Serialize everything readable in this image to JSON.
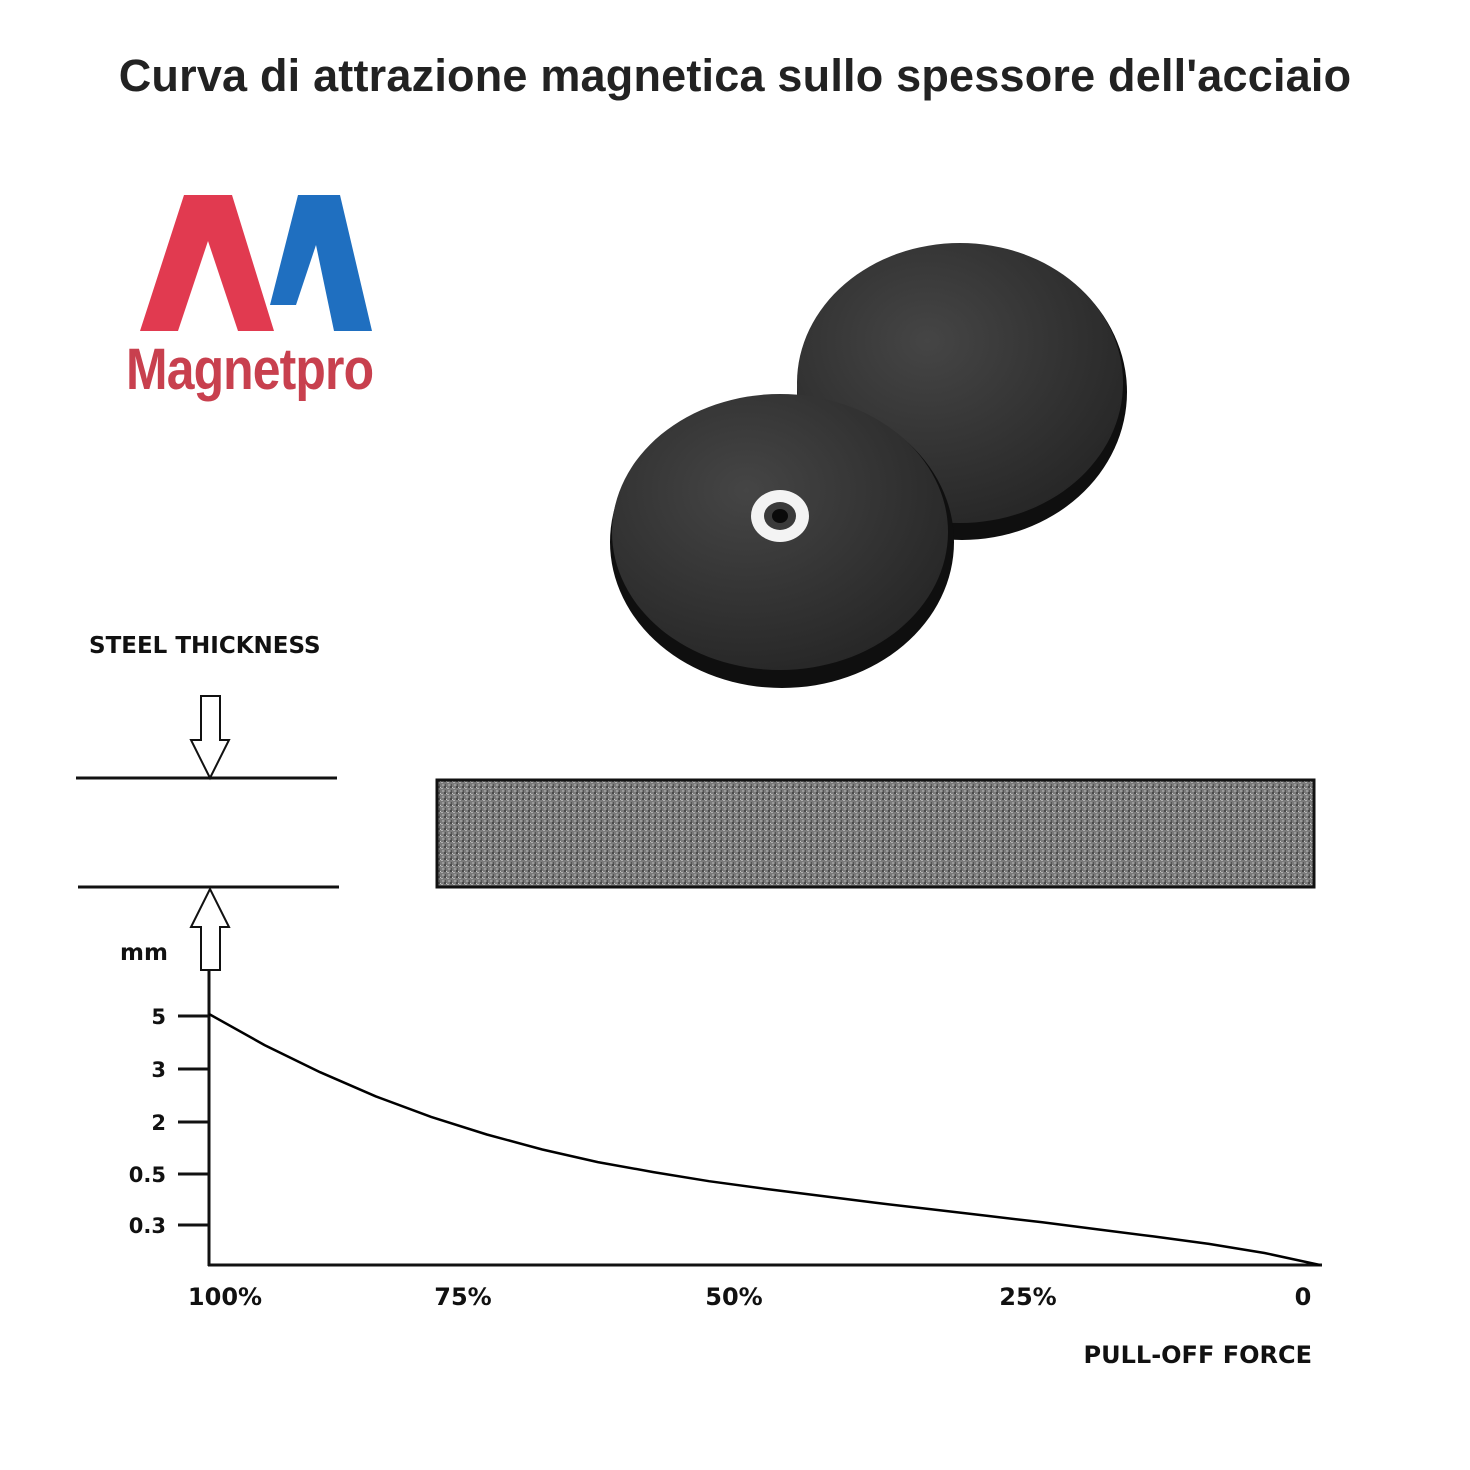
{
  "title": "Curva di attrazione magnetica sullo spessore dell'acciaio",
  "logo": {
    "text": "Magnetpro",
    "text_color": "#c8404e",
    "left_color": "#e13a50",
    "right_color": "#1f6fc0"
  },
  "chart_data": {
    "type": "line",
    "y_title": "STEEL THICKNESS",
    "y_unit": "mm",
    "x_title": "PULL-OFF FORCE",
    "x_ticks": [
      "100%",
      "75%",
      "50%",
      "25%",
      "0"
    ],
    "y_ticks": [
      "5",
      "3",
      "2",
      "0.5",
      "0.3"
    ],
    "x_direction": "decreasing",
    "series": [
      {
        "x": [
          100,
          95,
          90,
          85,
          80,
          75,
          70,
          65,
          60,
          55,
          50,
          45,
          40,
          35,
          30,
          25,
          20,
          15,
          10,
          5,
          0
        ],
        "y_rank": [
          5.0,
          4.38,
          3.84,
          3.36,
          2.95,
          2.6,
          2.3,
          2.05,
          1.85,
          1.67,
          1.52,
          1.38,
          1.24,
          1.11,
          0.98,
          0.85,
          0.71,
          0.57,
          0.42,
          0.24,
          0.0
        ]
      }
    ],
    "grid": false,
    "line_color": "#000000"
  },
  "steel_plate": {
    "fill": "#7a7a7a",
    "border": "#111111"
  },
  "magnet": {
    "color": "#2d2d2d",
    "edge_color": "#0f0f0f"
  }
}
